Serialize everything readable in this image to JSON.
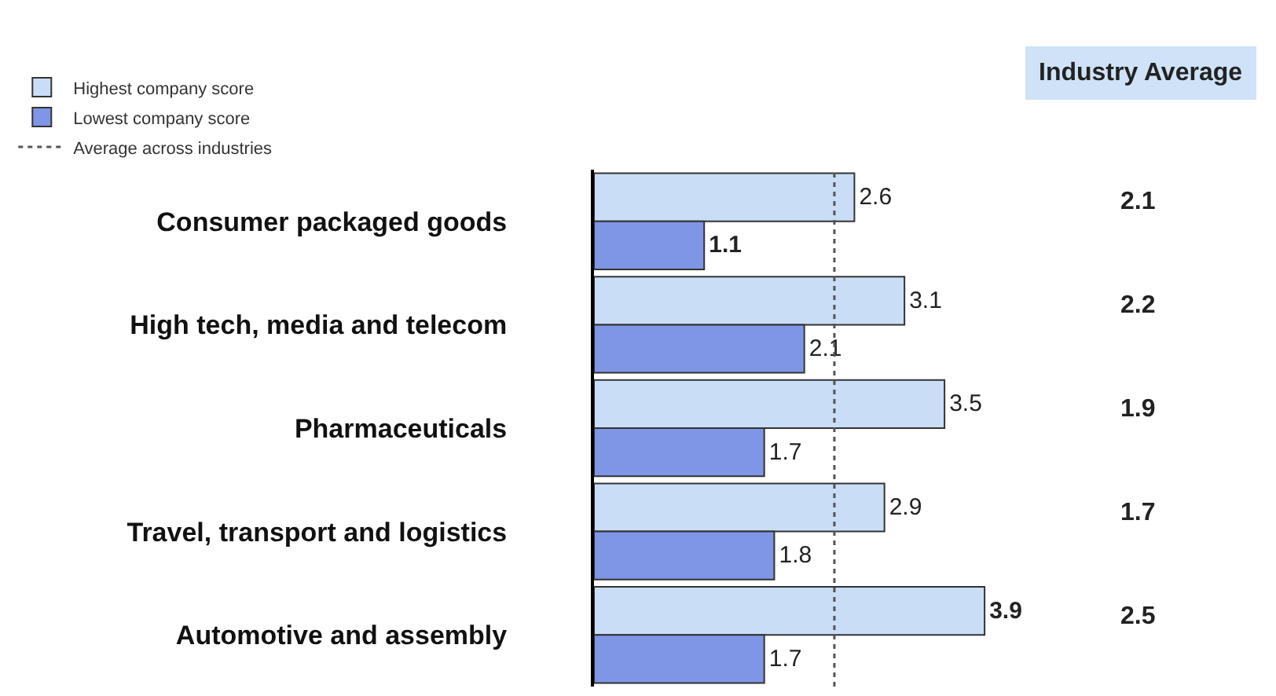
{
  "chart_data": {
    "type": "bar",
    "orientation": "horizontal",
    "categories": [
      "Consumer packaged goods",
      "High tech, media and telecom",
      "Pharmaceuticals",
      "Travel, transport and logistics",
      "Automotive and assembly"
    ],
    "series": [
      {
        "name": "Highest company score",
        "color": "#c9ddf6",
        "values": [
          2.6,
          3.1,
          3.5,
          2.9,
          3.9
        ]
      },
      {
        "name": "Lowest company score",
        "color": "#7f95e6",
        "values": [
          1.1,
          2.1,
          1.7,
          1.8,
          1.7
        ]
      }
    ],
    "ref_lines": [
      {
        "axis": "x",
        "value": 2.4,
        "label": "Average across industries",
        "color": "#555555",
        "line_style": "dotted"
      }
    ],
    "annotations": [
      "Industry Average",
      "2.1",
      "2.2",
      "1.9",
      "1.7",
      "2.5"
    ],
    "data_labels": true,
    "tick_labels": "y",
    "legend": "top left",
    "grid": false
  }
}
